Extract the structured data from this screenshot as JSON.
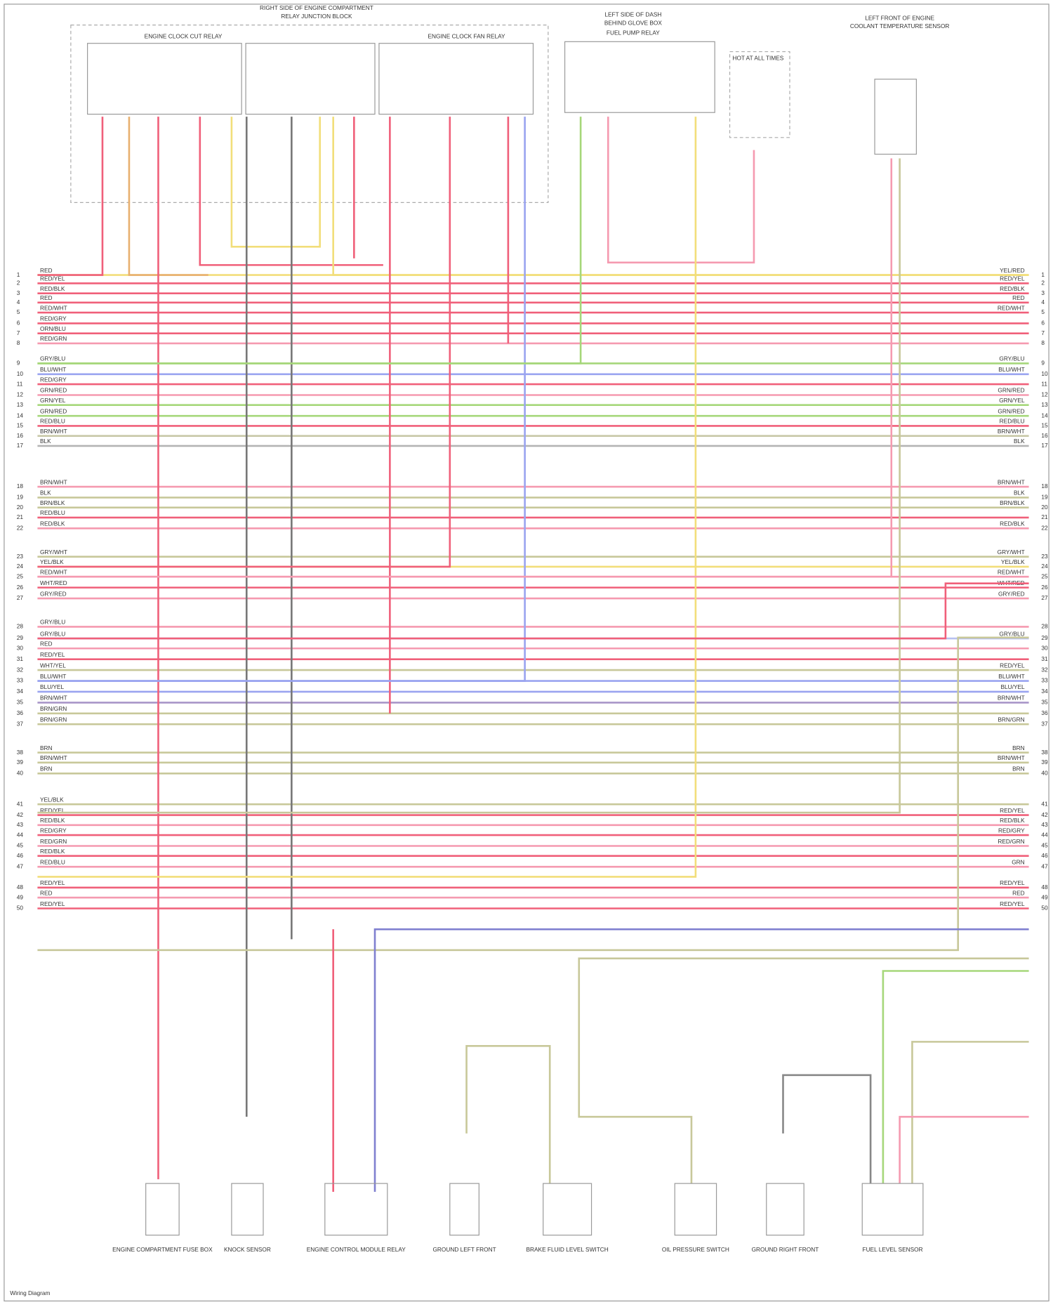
{
  "header": {
    "blocks": [
      "RIGHT SIDE OF ENGINE COMPARTMENT",
      "RELAY JUNCTION BLOCK",
      "ENGINE CLOCK CUT RELAY",
      "ENGINE CLOCK FAN RELAY",
      "LEFT SIDE OF DASH",
      "BEHIND GLOVE BOX",
      "FUEL PUMP RELAY",
      "HOT AT ALL TIMES",
      "LEFT FRONT OF ENGINE",
      "COOLANT TEMPERATURE SENSOR"
    ]
  },
  "rows": [
    {
      "pin": 1,
      "left": "RED",
      "right": "YEL/RED",
      "color": "#f2de7a"
    },
    {
      "pin": 2,
      "left": "RED/YEL",
      "right": "RED/YEL",
      "color": "#f0607a"
    },
    {
      "pin": 3,
      "left": "RED/BLK",
      "right": "RED/BLK",
      "color": "#f0607a"
    },
    {
      "pin": 4,
      "left": "RED",
      "right": "RED",
      "color": "#f0607a"
    },
    {
      "pin": 5,
      "left": "RED/WHT",
      "right": "RED/WHT",
      "color": "#f0607a"
    },
    {
      "pin": 6,
      "left": "RED/GRY",
      "color": "#f0607a"
    },
    {
      "pin": 7,
      "left": "ORN/BLU",
      "color": "#f0607a"
    },
    {
      "pin": 8,
      "left": "RED/GRN",
      "color": "#f59ab0"
    },
    {
      "pin": 9,
      "left": "GRY/BLU",
      "right": "GRY/BLU",
      "color": "#a6d77a"
    },
    {
      "pin": 10,
      "left": "BLU/WHT",
      "right": "BLU/WHT",
      "color": "#9aa4f0"
    },
    {
      "pin": 11,
      "left": "RED/GRY",
      "color": "#f0607a"
    },
    {
      "pin": 12,
      "left": "GRN/RED",
      "right": "GRN/RED",
      "color": "#f59ab0"
    },
    {
      "pin": 13,
      "left": "GRN/YEL",
      "right": "GRN/YEL",
      "color": "#a6d77a"
    },
    {
      "pin": 14,
      "left": "GRN/RED",
      "right": "GRN/RED",
      "color": "#a6d77a"
    },
    {
      "pin": 15,
      "left": "RED/BLU",
      "right": "RED/BLU",
      "color": "#f0607a"
    },
    {
      "pin": 16,
      "left": "BRN/WHT",
      "right": "BRN/WHT",
      "color": "#c8c8a8"
    },
    {
      "pin": 17,
      "left": "BLK",
      "right": "BLK",
      "color": "#b4b4b4"
    },
    {
      "pin": 18,
      "left": "BRN/WHT",
      "right": "BRN/WHT",
      "color": "#f59ab0"
    },
    {
      "pin": 19,
      "left": "BLK",
      "right": "BLK",
      "color": "#c8c89a"
    },
    {
      "pin": 20,
      "left": "BRN/BLK",
      "right": "BRN/BLK",
      "color": "#c8c89a"
    },
    {
      "pin": 21,
      "left": "RED/BLU",
      "color": "#f0607a"
    },
    {
      "pin": 22,
      "left": "RED/BLK",
      "right": "RED/BLK",
      "color": "#f59ab0"
    },
    {
      "pin": 23,
      "left": "GRY/WHT",
      "right": "GRY/WHT",
      "color": "#c8c89a"
    },
    {
      "pin": 24,
      "left": "YEL/BLK",
      "right": "YEL/BLK",
      "color": "#f2de7a"
    },
    {
      "pin": 25,
      "left": "RED/WHT",
      "right": "RED/WHT",
      "color": "#f59ab0"
    },
    {
      "pin": 26,
      "left": "WHT/RED",
      "right": "WHT/RED",
      "color": "#f0607a"
    },
    {
      "pin": 27,
      "left": "GRY/RED",
      "right": "GRY/RED",
      "color": "#f59ab0"
    },
    {
      "pin": 28,
      "left": "GRY/BLU",
      "color": "#f59ab0"
    },
    {
      "pin": 29,
      "left": "GRY/BLU",
      "right": "GRY/BLU",
      "color": "#b8c0f0"
    },
    {
      "pin": 30,
      "left": "RED",
      "color": "#f59ab0"
    },
    {
      "pin": 31,
      "left": "RED/YEL",
      "color": "#f0607a"
    },
    {
      "pin": 32,
      "left": "WHT/YEL",
      "right": "RED/YEL",
      "color": "#c8c89a"
    },
    {
      "pin": 33,
      "left": "BLU/WHT",
      "right": "BLU/WHT",
      "color": "#9aa4f0"
    },
    {
      "pin": 34,
      "left": "BLU/YEL",
      "right": "BLU/YEL",
      "color": "#9aa4f0"
    },
    {
      "pin": 35,
      "left": "BRN/WHT",
      "right": "BRN/WHT",
      "color": "#a896c8"
    },
    {
      "pin": 36,
      "left": "BRN/GRN",
      "color": "#c8c89a"
    },
    {
      "pin": 37,
      "left": "BRN/GRN",
      "right": "BRN/GRN",
      "color": "#c8c89a"
    },
    {
      "pin": 38,
      "left": "BRN",
      "right": "BRN",
      "color": "#c8c89a"
    },
    {
      "pin": 39,
      "left": "BRN/WHT",
      "right": "BRN/WHT",
      "color": "#c8c89a"
    },
    {
      "pin": 40,
      "left": "BRN",
      "right": "BRN",
      "color": "#c8c89a"
    },
    {
      "pin": 41,
      "left": "YEL/BLK",
      "color": "#c8c89a"
    },
    {
      "pin": 42,
      "left": "RED/YEL",
      "right": "RED/YEL",
      "color": "#f0607a"
    },
    {
      "pin": 43,
      "left": "RED/BLK",
      "right": "RED/BLK",
      "color": "#f59ab0"
    },
    {
      "pin": 44,
      "left": "RED/GRY",
      "right": "RED/GRY",
      "color": "#f0607a"
    },
    {
      "pin": 45,
      "left": "RED/GRN",
      "right": "RED/GRN",
      "color": "#f59ab0"
    },
    {
      "pin": 46,
      "left": "RED/BLK",
      "color": "#f0607a"
    },
    {
      "pin": 47,
      "left": "RED/BLU",
      "right": "GRN",
      "color": "#f59ab0"
    },
    {
      "pin": 48,
      "left": "RED/YEL",
      "right": "RED/YEL",
      "color": "#f0607a"
    },
    {
      "pin": 49,
      "left": "RED",
      "right": "RED",
      "color": "#f59ab0"
    },
    {
      "pin": 50,
      "left": "RED/YEL",
      "right": "RED/YEL",
      "color": "#f0607a"
    }
  ],
  "components": [
    "ENGINE COMPARTMENT FUSE BOX",
    "KNOCK SENSOR",
    "ENGINE CONTROL MODULE RELAY",
    "GROUND LEFT FRONT",
    "BRAKE FLUID LEVEL SWITCH",
    "OIL PRESSURE SWITCH",
    "GROUND RIGHT FRONT",
    "FUEL LEVEL SENSOR"
  ],
  "footer": {
    "credit": "Wiring Diagram"
  }
}
